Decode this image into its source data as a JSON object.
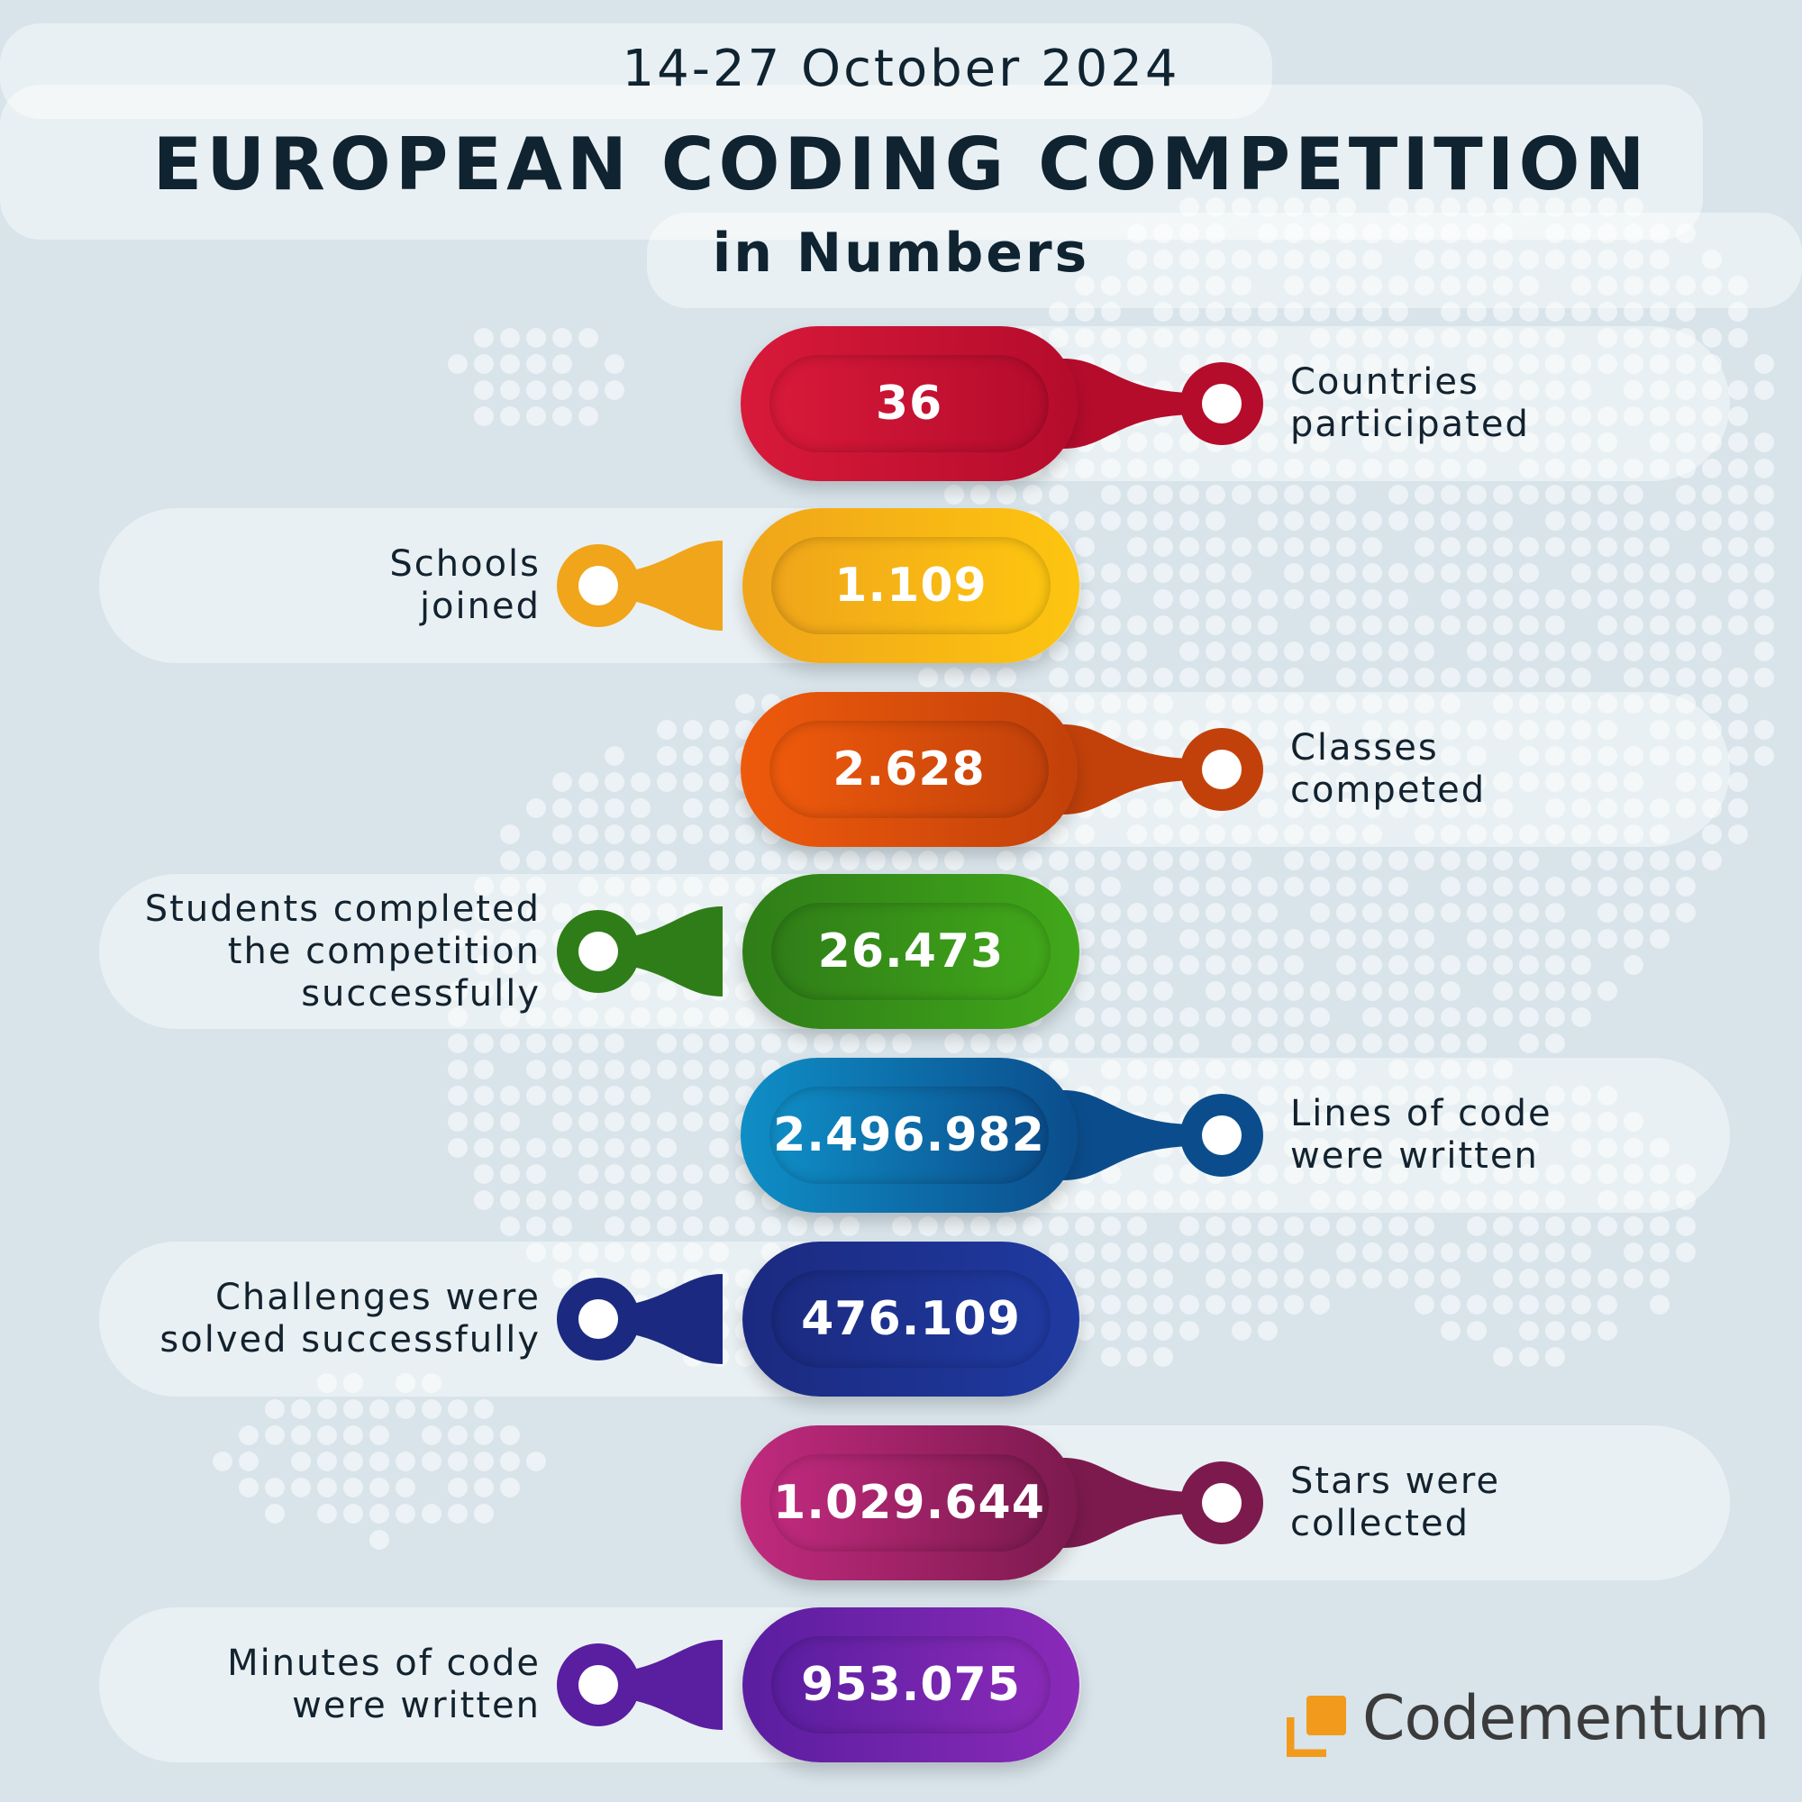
{
  "header": {
    "dates": "14-27 October 2024",
    "title": "EUROPEAN CODING COMPETITION",
    "subtitle": "in Numbers"
  },
  "stats": [
    {
      "value": "36",
      "label": [
        "Countries",
        "participated"
      ],
      "side": "right",
      "color_a": "#d8193a",
      "color_b": "#b50c2c"
    },
    {
      "value": "1.109",
      "label": [
        "Schools",
        "joined"
      ],
      "side": "left",
      "color_a": "#f0a51a",
      "color_b": "#fdc510"
    },
    {
      "value": "2.628",
      "label": [
        "Classes",
        "competed"
      ],
      "side": "right",
      "color_a": "#ee5a0c",
      "color_b": "#c2410a"
    },
    {
      "value": "26.473",
      "label": [
        "Students completed",
        "the competition",
        "successfully"
      ],
      "side": "left",
      "color_a": "#2f7d18",
      "color_b": "#41a81a"
    },
    {
      "value": "2.496.982",
      "label": [
        "Lines of code",
        "were written"
      ],
      "side": "right",
      "color_a": "#0f8ec6",
      "color_b": "#0b4d8c"
    },
    {
      "value": "476.109",
      "label": [
        "Challenges were",
        "solved successfully"
      ],
      "side": "left",
      "color_a": "#1b2a80",
      "color_b": "#1f3aa0"
    },
    {
      "value": "1.029.644",
      "label": [
        "Stars were",
        "collected"
      ],
      "side": "right",
      "color_a": "#c12a7e",
      "color_b": "#7c1a4e"
    },
    {
      "value": "953.075",
      "label": [
        "Minutes of code",
        "were written"
      ],
      "side": "left",
      "color_a": "#5a1ea0",
      "color_b": "#8a2ab8"
    }
  ],
  "logo": {
    "text": "Codementum",
    "accent": "#f29a1c"
  }
}
